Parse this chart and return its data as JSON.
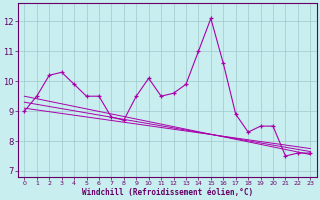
{
  "xlabel": "Windchill (Refroidissement éolien,°C)",
  "background_color": "#c8eef0",
  "grid_color": "#b0d8da",
  "line_color": "#aa00aa",
  "xlim": [
    -0.5,
    23.5
  ],
  "ylim": [
    6.8,
    12.6
  ],
  "yticks": [
    7,
    8,
    9,
    10,
    11,
    12
  ],
  "xticks": [
    0,
    1,
    2,
    3,
    4,
    5,
    6,
    7,
    8,
    9,
    10,
    11,
    12,
    13,
    14,
    15,
    16,
    17,
    18,
    19,
    20,
    21,
    22,
    23
  ],
  "series1_x": [
    0,
    1,
    2,
    3,
    4,
    5,
    6,
    7,
    8,
    9,
    10,
    11,
    12,
    13,
    14,
    15,
    16,
    17,
    18,
    19,
    20,
    21,
    22,
    23
  ],
  "series1_y": [
    9.0,
    9.5,
    10.2,
    10.3,
    9.9,
    9.5,
    9.5,
    8.8,
    8.7,
    9.5,
    10.1,
    9.5,
    9.6,
    9.9,
    11.0,
    12.1,
    10.6,
    8.9,
    8.3,
    8.5,
    8.5,
    7.5,
    7.6,
    7.6
  ],
  "series2_x": [
    0,
    23
  ],
  "series2_y": [
    9.5,
    7.55
  ],
  "series3_x": [
    0,
    23
  ],
  "series3_y": [
    9.3,
    7.65
  ],
  "series4_x": [
    0,
    23
  ],
  "series4_y": [
    9.1,
    7.75
  ]
}
